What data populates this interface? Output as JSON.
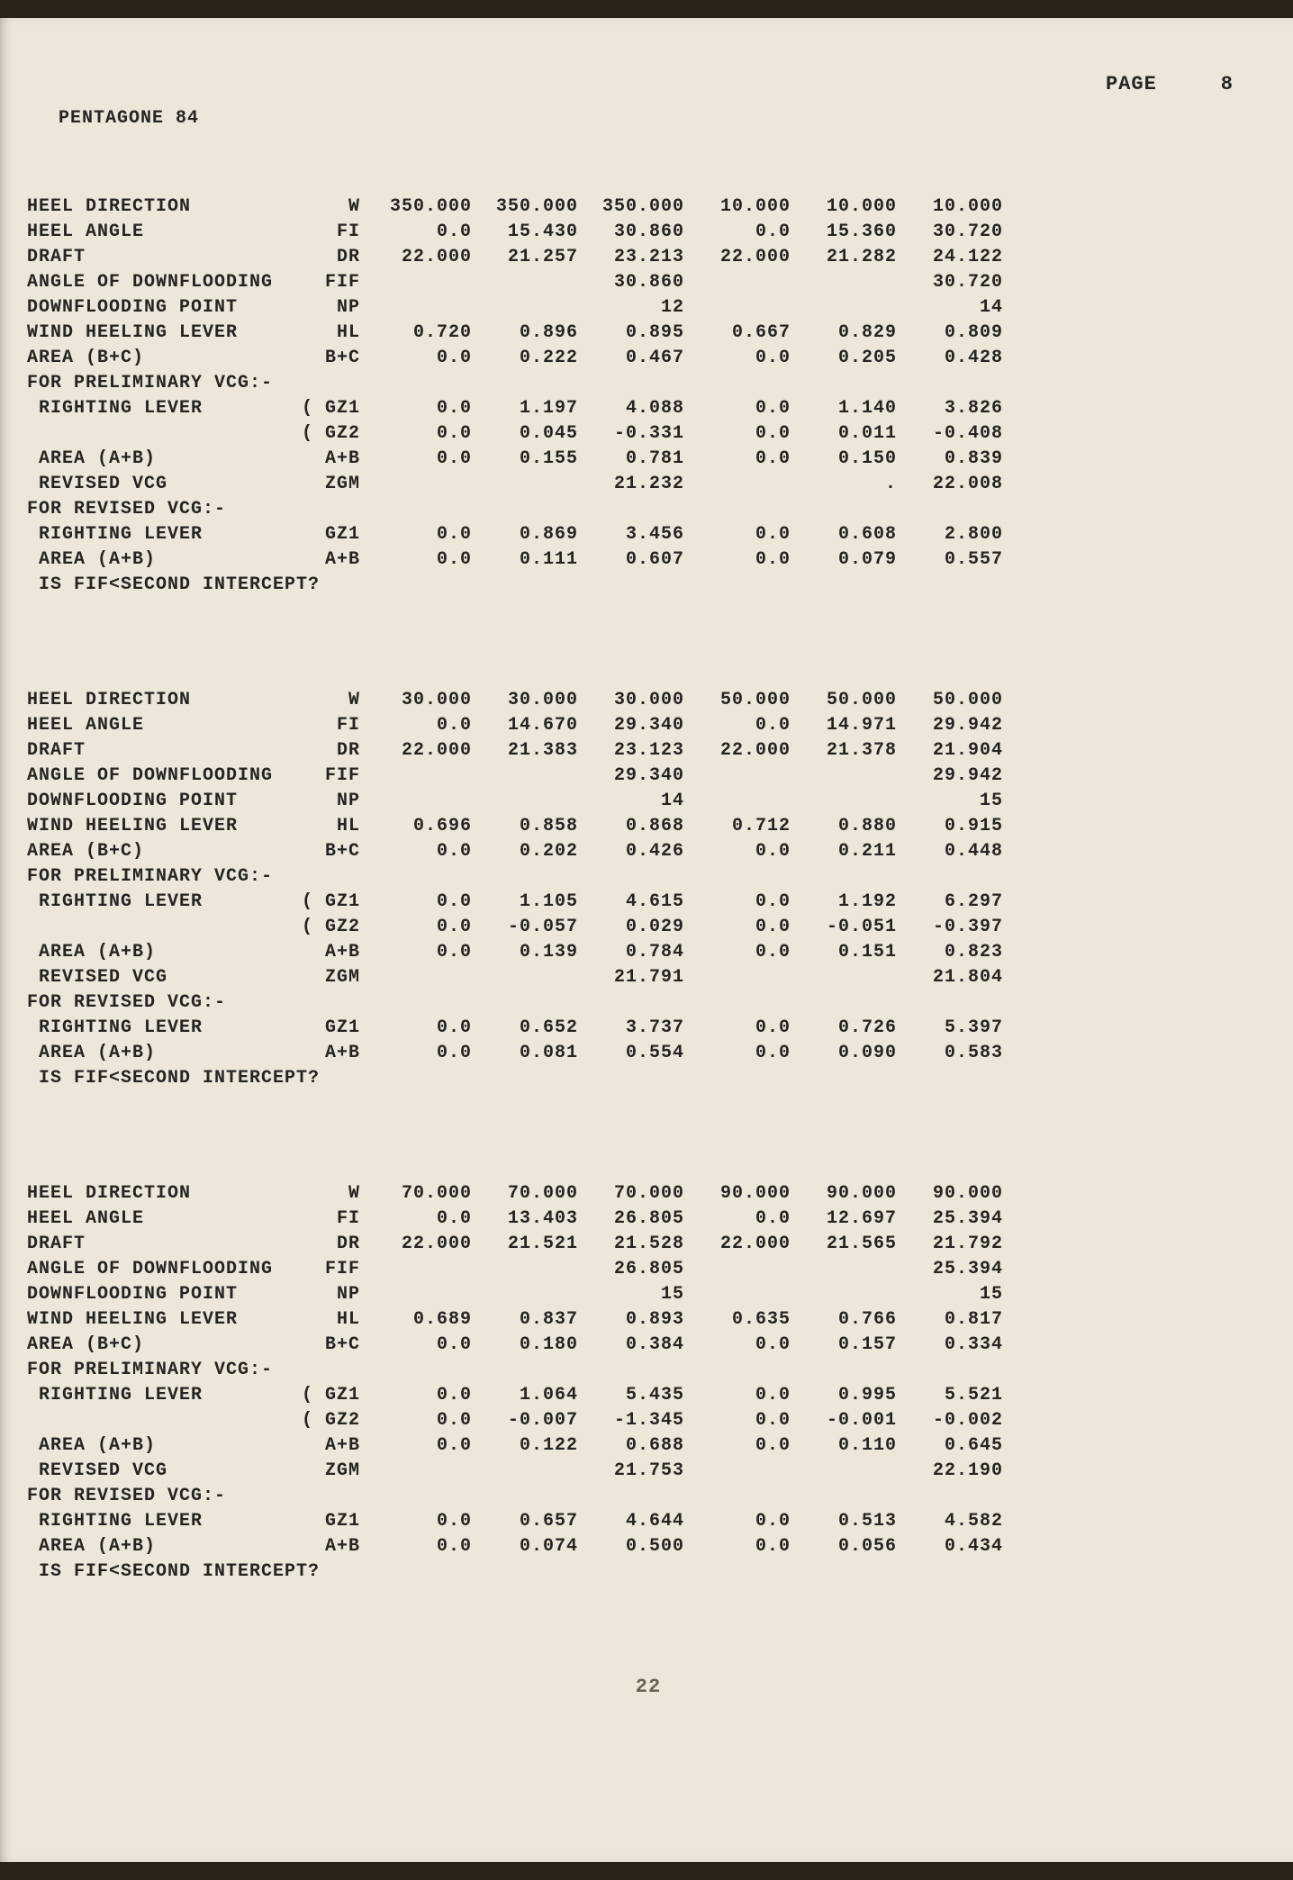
{
  "header": {
    "page_label": "PAGE",
    "page_number": "8"
  },
  "document": {
    "title": "PENTAGONE 84"
  },
  "blocks": [
    {
      "rows": [
        {
          "label": "HEEL DIRECTION",
          "sym": "W",
          "vals": [
            "350.000",
            "350.000",
            "350.000",
            "10.000",
            "10.000",
            "10.000"
          ]
        },
        {
          "label": "HEEL ANGLE",
          "sym": "FI",
          "vals": [
            "0.0",
            "15.430",
            "30.860",
            "0.0",
            "15.360",
            "30.720"
          ]
        },
        {
          "label": "DRAFT",
          "sym": "DR",
          "vals": [
            "22.000",
            "21.257",
            "23.213",
            "22.000",
            "21.282",
            "24.122"
          ]
        },
        {
          "label": "ANGLE OF DOWNFLOODING",
          "sym": "FIF",
          "vals": [
            "",
            "",
            "30.860",
            "",
            "",
            "30.720"
          ]
        },
        {
          "label": "DOWNFLOODING POINT",
          "sym": "NP",
          "vals": [
            "",
            "",
            "12",
            "",
            "",
            "14"
          ]
        },
        {
          "label": "WIND HEELING LEVER",
          "sym": "HL",
          "vals": [
            "0.720",
            "0.896",
            "0.895",
            "0.667",
            "0.829",
            "0.809"
          ]
        },
        {
          "label": "AREA (B+C)",
          "sym": "B+C",
          "vals": [
            "0.0",
            "0.222",
            "0.467",
            "0.0",
            "0.205",
            "0.428"
          ]
        },
        {
          "label": "FOR PRELIMINARY VCG:-",
          "sym": "",
          "vals": [
            "",
            "",
            "",
            "",
            "",
            ""
          ]
        },
        {
          "label": " RIGHTING LEVER",
          "sym": "( GZ1",
          "vals": [
            "0.0",
            "1.197",
            "4.088",
            "0.0",
            "1.140",
            "3.826"
          ]
        },
        {
          "label": "",
          "sym": "( GZ2",
          "vals": [
            "0.0",
            "0.045",
            "-0.331",
            "0.0",
            "0.011",
            "-0.408"
          ]
        },
        {
          "label": " AREA (A+B)",
          "sym": "A+B",
          "vals": [
            "0.0",
            "0.155",
            "0.781",
            "0.0",
            "0.150",
            "0.839"
          ]
        },
        {
          "label": " REVISED VCG",
          "sym": "ZGM",
          "vals": [
            "",
            "",
            "21.232",
            "",
            ".",
            "22.008"
          ]
        },
        {
          "label": "FOR REVISED VCG:-",
          "sym": "",
          "vals": [
            "",
            "",
            "",
            "",
            "",
            ""
          ]
        },
        {
          "label": " RIGHTING LEVER",
          "sym": "GZ1",
          "vals": [
            "0.0",
            "0.869",
            "3.456",
            "0.0",
            "0.608",
            "2.800"
          ]
        },
        {
          "label": " AREA (A+B)",
          "sym": "A+B",
          "vals": [
            "0.0",
            "0.111",
            "0.607",
            "0.0",
            "0.079",
            "0.557"
          ]
        },
        {
          "label": " IS FIF<SECOND INTERCEPT?",
          "sym": "",
          "vals": [
            "",
            "",
            "",
            "",
            "",
            ""
          ]
        }
      ]
    },
    {
      "rows": [
        {
          "label": "HEEL DIRECTION",
          "sym": "W",
          "vals": [
            "30.000",
            "30.000",
            "30.000",
            "50.000",
            "50.000",
            "50.000"
          ]
        },
        {
          "label": "HEEL ANGLE",
          "sym": "FI",
          "vals": [
            "0.0",
            "14.670",
            "29.340",
            "0.0",
            "14.971",
            "29.942"
          ]
        },
        {
          "label": "DRAFT",
          "sym": "DR",
          "vals": [
            "22.000",
            "21.383",
            "23.123",
            "22.000",
            "21.378",
            "21.904"
          ]
        },
        {
          "label": "ANGLE OF DOWNFLOODING",
          "sym": "FIF",
          "vals": [
            "",
            "",
            "29.340",
            "",
            "",
            "29.942"
          ]
        },
        {
          "label": "DOWNFLOODING POINT",
          "sym": "NP",
          "vals": [
            "",
            "",
            "14",
            "",
            "",
            "15"
          ]
        },
        {
          "label": "WIND HEELING LEVER",
          "sym": "HL",
          "vals": [
            "0.696",
            "0.858",
            "0.868",
            "0.712",
            "0.880",
            "0.915"
          ]
        },
        {
          "label": "AREA (B+C)",
          "sym": "B+C",
          "vals": [
            "0.0",
            "0.202",
            "0.426",
            "0.0",
            "0.211",
            "0.448"
          ]
        },
        {
          "label": "FOR PRELIMINARY VCG:-",
          "sym": "",
          "vals": [
            "",
            "",
            "",
            "",
            "",
            ""
          ]
        },
        {
          "label": " RIGHTING LEVER",
          "sym": "( GZ1",
          "vals": [
            "0.0",
            "1.105",
            "4.615",
            "0.0",
            "1.192",
            "6.297"
          ]
        },
        {
          "label": "",
          "sym": "( GZ2",
          "vals": [
            "0.0",
            "-0.057",
            "0.029",
            "0.0",
            "-0.051",
            "-0.397"
          ]
        },
        {
          "label": " AREA (A+B)",
          "sym": "A+B",
          "vals": [
            "0.0",
            "0.139",
            "0.784",
            "0.0",
            "0.151",
            "0.823"
          ]
        },
        {
          "label": " REVISED VCG",
          "sym": "ZGM",
          "vals": [
            "",
            "",
            "21.791",
            "",
            "",
            "21.804"
          ]
        },
        {
          "label": "FOR REVISED VCG:-",
          "sym": "",
          "vals": [
            "",
            "",
            "",
            "",
            "",
            ""
          ]
        },
        {
          "label": " RIGHTING LEVER",
          "sym": "GZ1",
          "vals": [
            "0.0",
            "0.652",
            "3.737",
            "0.0",
            "0.726",
            "5.397"
          ]
        },
        {
          "label": " AREA (A+B)",
          "sym": "A+B",
          "vals": [
            "0.0",
            "0.081",
            "0.554",
            "0.0",
            "0.090",
            "0.583"
          ]
        },
        {
          "label": " IS FIF<SECOND INTERCEPT?",
          "sym": "",
          "vals": [
            "",
            "",
            "",
            "",
            "",
            ""
          ]
        }
      ]
    },
    {
      "rows": [
        {
          "label": "HEEL DIRECTION",
          "sym": "W",
          "vals": [
            "70.000",
            "70.000",
            "70.000",
            "90.000",
            "90.000",
            "90.000"
          ]
        },
        {
          "label": "HEEL ANGLE",
          "sym": "FI",
          "vals": [
            "0.0",
            "13.403",
            "26.805",
            "0.0",
            "12.697",
            "25.394"
          ]
        },
        {
          "label": "DRAFT",
          "sym": "DR",
          "vals": [
            "22.000",
            "21.521",
            "21.528",
            "22.000",
            "21.565",
            "21.792"
          ]
        },
        {
          "label": "ANGLE OF DOWNFLOODING",
          "sym": "FIF",
          "vals": [
            "",
            "",
            "26.805",
            "",
            "",
            "25.394"
          ]
        },
        {
          "label": "DOWNFLOODING POINT",
          "sym": "NP",
          "vals": [
            "",
            "",
            "15",
            "",
            "",
            "15"
          ]
        },
        {
          "label": "WIND HEELING LEVER",
          "sym": "HL",
          "vals": [
            "0.689",
            "0.837",
            "0.893",
            "0.635",
            "0.766",
            "0.817"
          ]
        },
        {
          "label": "AREA (B+C)",
          "sym": "B+C",
          "vals": [
            "0.0",
            "0.180",
            "0.384",
            "0.0",
            "0.157",
            "0.334"
          ]
        },
        {
          "label": "FOR PRELIMINARY VCG:-",
          "sym": "",
          "vals": [
            "",
            "",
            "",
            "",
            "",
            ""
          ]
        },
        {
          "label": " RIGHTING LEVER",
          "sym": "( GZ1",
          "vals": [
            "0.0",
            "1.064",
            "5.435",
            "0.0",
            "0.995",
            "5.521"
          ]
        },
        {
          "label": "",
          "sym": "( GZ2",
          "vals": [
            "0.0",
            "-0.007",
            "-1.345",
            "0.0",
            "-0.001",
            "-0.002"
          ]
        },
        {
          "label": " AREA (A+B)",
          "sym": "A+B",
          "vals": [
            "0.0",
            "0.122",
            "0.688",
            "0.0",
            "0.110",
            "0.645"
          ]
        },
        {
          "label": " REVISED VCG",
          "sym": "ZGM",
          "vals": [
            "",
            "",
            "21.753",
            "",
            "",
            "22.190"
          ]
        },
        {
          "label": "FOR REVISED VCG:-",
          "sym": "",
          "vals": [
            "",
            "",
            "",
            "",
            "",
            ""
          ]
        },
        {
          "label": " RIGHTING LEVER",
          "sym": "GZ1",
          "vals": [
            "0.0",
            "0.657",
            "4.644",
            "0.0",
            "0.513",
            "4.582"
          ]
        },
        {
          "label": " AREA (A+B)",
          "sym": "A+B",
          "vals": [
            "0.0",
            "0.074",
            "0.500",
            "0.0",
            "0.056",
            "0.434"
          ]
        },
        {
          "label": " IS FIF<SECOND INTERCEPT?",
          "sym": "",
          "vals": [
            "",
            "",
            "",
            "",
            "",
            ""
          ]
        }
      ]
    }
  ],
  "scribble": "22"
}
